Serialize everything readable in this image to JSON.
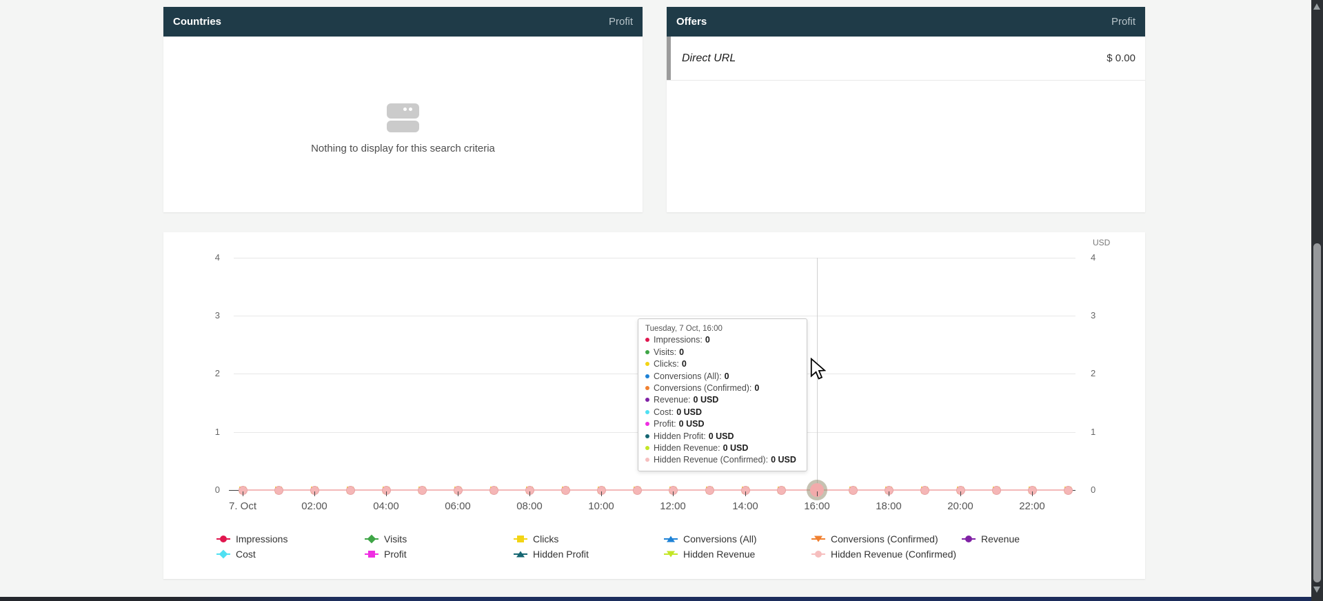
{
  "panels": {
    "countries": {
      "title": "Countries",
      "metric": "Profit",
      "empty_text": "Nothing to display for this search criteria"
    },
    "offers": {
      "title": "Offers",
      "metric": "Profit",
      "rows": [
        {
          "label": "Direct URL",
          "value": "$ 0.00"
        }
      ]
    }
  },
  "chart_data": {
    "type": "line",
    "title": "",
    "unit_label": "USD",
    "x_categories": [
      "00:00",
      "01:00",
      "02:00",
      "03:00",
      "04:00",
      "05:00",
      "06:00",
      "07:00",
      "08:00",
      "09:00",
      "10:00",
      "11:00",
      "12:00",
      "13:00",
      "14:00",
      "15:00",
      "16:00",
      "17:00",
      "18:00",
      "19:00",
      "20:00",
      "21:00",
      "22:00",
      "23:00"
    ],
    "x_date": "7. Oct",
    "xtick_labels": [
      "7. Oct",
      "02:00",
      "04:00",
      "06:00",
      "08:00",
      "10:00",
      "12:00",
      "14:00",
      "16:00",
      "18:00",
      "20:00",
      "22:00"
    ],
    "yticks": [
      0,
      1,
      2,
      3,
      4
    ],
    "ylim": [
      0,
      4
    ],
    "grid": true,
    "legend_position": "bottom",
    "point_marker": {
      "fill": "#f5b6b6",
      "behind_fill": "#f3d414"
    },
    "hovered_point": {
      "index": 16,
      "xtick": "16:00"
    },
    "series": [
      {
        "name": "Impressions",
        "color": "#e0164e",
        "marker": "circle",
        "values": [
          0,
          0,
          0,
          0,
          0,
          0,
          0,
          0,
          0,
          0,
          0,
          0,
          0,
          0,
          0,
          0,
          0,
          0,
          0,
          0,
          0,
          0,
          0,
          0
        ]
      },
      {
        "name": "Visits",
        "color": "#3ea546",
        "marker": "diamond",
        "values": [
          0,
          0,
          0,
          0,
          0,
          0,
          0,
          0,
          0,
          0,
          0,
          0,
          0,
          0,
          0,
          0,
          0,
          0,
          0,
          0,
          0,
          0,
          0,
          0
        ]
      },
      {
        "name": "Clicks",
        "color": "#f3d414",
        "marker": "square",
        "values": [
          0,
          0,
          0,
          0,
          0,
          0,
          0,
          0,
          0,
          0,
          0,
          0,
          0,
          0,
          0,
          0,
          0,
          0,
          0,
          0,
          0,
          0,
          0,
          0
        ]
      },
      {
        "name": "Conversions (All)",
        "color": "#1e82d6",
        "marker": "triangle-up",
        "values": [
          0,
          0,
          0,
          0,
          0,
          0,
          0,
          0,
          0,
          0,
          0,
          0,
          0,
          0,
          0,
          0,
          0,
          0,
          0,
          0,
          0,
          0,
          0,
          0
        ]
      },
      {
        "name": "Conversions (Confirmed)",
        "color": "#f08030",
        "marker": "triangle-down",
        "values": [
          0,
          0,
          0,
          0,
          0,
          0,
          0,
          0,
          0,
          0,
          0,
          0,
          0,
          0,
          0,
          0,
          0,
          0,
          0,
          0,
          0,
          0,
          0,
          0
        ]
      },
      {
        "name": "Revenue",
        "color": "#8021a5",
        "marker": "circle",
        "values": [
          0,
          0,
          0,
          0,
          0,
          0,
          0,
          0,
          0,
          0,
          0,
          0,
          0,
          0,
          0,
          0,
          0,
          0,
          0,
          0,
          0,
          0,
          0,
          0
        ]
      },
      {
        "name": "Cost",
        "color": "#4fe0f2",
        "marker": "diamond",
        "values": [
          0,
          0,
          0,
          0,
          0,
          0,
          0,
          0,
          0,
          0,
          0,
          0,
          0,
          0,
          0,
          0,
          0,
          0,
          0,
          0,
          0,
          0,
          0,
          0
        ]
      },
      {
        "name": "Profit",
        "color": "#ef2ee2",
        "marker": "square",
        "values": [
          0,
          0,
          0,
          0,
          0,
          0,
          0,
          0,
          0,
          0,
          0,
          0,
          0,
          0,
          0,
          0,
          0,
          0,
          0,
          0,
          0,
          0,
          0,
          0
        ]
      },
      {
        "name": "Hidden Profit",
        "color": "#156672",
        "marker": "triangle-up",
        "values": [
          0,
          0,
          0,
          0,
          0,
          0,
          0,
          0,
          0,
          0,
          0,
          0,
          0,
          0,
          0,
          0,
          0,
          0,
          0,
          0,
          0,
          0,
          0,
          0
        ]
      },
      {
        "name": "Hidden Revenue",
        "color": "#c3e625",
        "marker": "triangle-down",
        "values": [
          0,
          0,
          0,
          0,
          0,
          0,
          0,
          0,
          0,
          0,
          0,
          0,
          0,
          0,
          0,
          0,
          0,
          0,
          0,
          0,
          0,
          0,
          0,
          0
        ]
      },
      {
        "name": "Hidden Revenue (Confirmed)",
        "color": "#f6bebe",
        "marker": "circle",
        "values": [
          0,
          0,
          0,
          0,
          0,
          0,
          0,
          0,
          0,
          0,
          0,
          0,
          0,
          0,
          0,
          0,
          0,
          0,
          0,
          0,
          0,
          0,
          0,
          0
        ]
      }
    ]
  },
  "tooltip": {
    "title": "Tuesday, 7 Oct, 16:00",
    "rows": [
      {
        "label": "Impressions",
        "value": "0",
        "color": "#e0164e"
      },
      {
        "label": "Visits",
        "value": "0",
        "color": "#3ea546"
      },
      {
        "label": "Clicks",
        "value": "0",
        "color": "#f3d414"
      },
      {
        "label": "Conversions (All)",
        "value": "0",
        "color": "#1e82d6"
      },
      {
        "label": "Conversions (Confirmed)",
        "value": "0",
        "color": "#f08030"
      },
      {
        "label": "Revenue",
        "value": "0 USD",
        "color": "#8021a5"
      },
      {
        "label": "Cost",
        "value": "0 USD",
        "color": "#4fe0f2"
      },
      {
        "label": "Profit",
        "value": "0 USD",
        "color": "#ef2ee2"
      },
      {
        "label": "Hidden Profit",
        "value": "0 USD",
        "color": "#156672"
      },
      {
        "label": "Hidden Revenue",
        "value": "0 USD",
        "color": "#c3e625"
      },
      {
        "label": "Hidden Revenue (Confirmed)",
        "value": "0 USD",
        "color": "#f6bebe"
      }
    ]
  }
}
